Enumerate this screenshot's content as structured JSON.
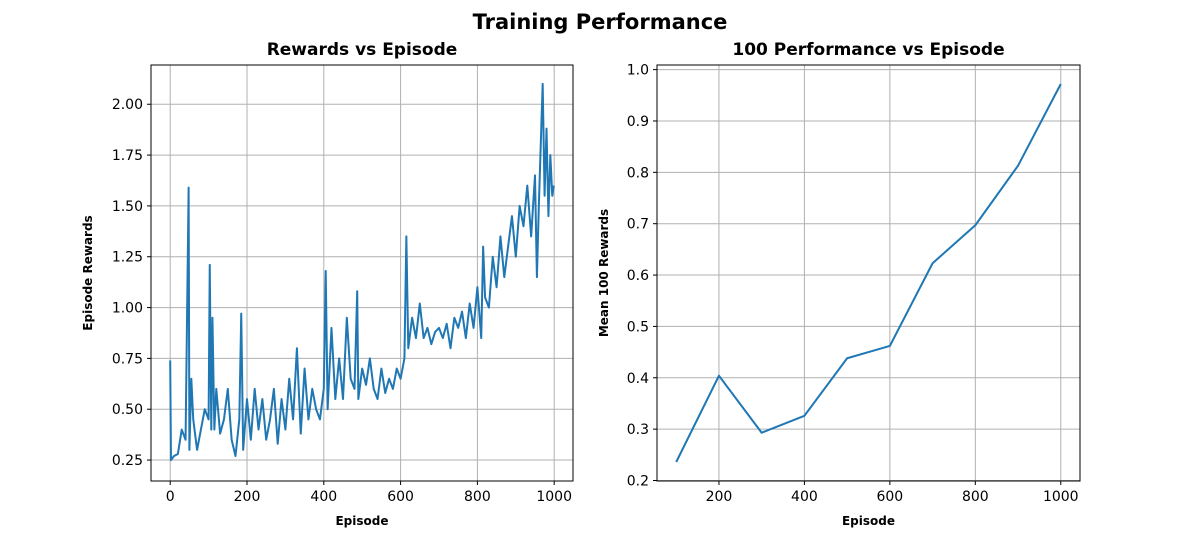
{
  "title": "Training Performance",
  "chart_data": [
    {
      "type": "line",
      "title": "Rewards vs Episode",
      "xlabel": "Episode",
      "ylabel": "Episode Rewards",
      "x": [
        0,
        2,
        10,
        20,
        30,
        40,
        48,
        50,
        55,
        60,
        70,
        80,
        90,
        100,
        103,
        107,
        110,
        115,
        120,
        130,
        140,
        150,
        160,
        170,
        180,
        185,
        190,
        200,
        210,
        220,
        230,
        240,
        250,
        260,
        270,
        280,
        290,
        300,
        310,
        320,
        330,
        340,
        350,
        360,
        370,
        380,
        390,
        400,
        405,
        410,
        420,
        430,
        440,
        450,
        460,
        470,
        480,
        487,
        490,
        500,
        510,
        520,
        530,
        540,
        550,
        560,
        570,
        580,
        590,
        600,
        610,
        615,
        620,
        630,
        640,
        650,
        660,
        670,
        680,
        690,
        700,
        710,
        720,
        730,
        740,
        750,
        760,
        770,
        780,
        790,
        800,
        810,
        815,
        820,
        830,
        840,
        850,
        860,
        870,
        880,
        890,
        900,
        910,
        920,
        930,
        940,
        950,
        955,
        960,
        965,
        970,
        975,
        980,
        985,
        990,
        995,
        999
      ],
      "series": [
        {
          "name": "Episode Rewards",
          "color": "#1f77b4",
          "values": [
            0.74,
            0.25,
            0.27,
            0.28,
            0.4,
            0.35,
            1.59,
            0.3,
            0.65,
            0.45,
            0.3,
            0.4,
            0.5,
            0.45,
            1.21,
            0.4,
            0.95,
            0.4,
            0.6,
            0.38,
            0.45,
            0.6,
            0.35,
            0.27,
            0.45,
            0.97,
            0.3,
            0.55,
            0.35,
            0.6,
            0.4,
            0.55,
            0.35,
            0.45,
            0.6,
            0.33,
            0.55,
            0.4,
            0.65,
            0.45,
            0.8,
            0.38,
            0.7,
            0.45,
            0.6,
            0.5,
            0.45,
            0.6,
            1.18,
            0.5,
            0.9,
            0.55,
            0.75,
            0.55,
            0.95,
            0.65,
            0.6,
            1.08,
            0.55,
            0.7,
            0.62,
            0.75,
            0.6,
            0.55,
            0.7,
            0.58,
            0.65,
            0.6,
            0.7,
            0.65,
            0.75,
            1.35,
            0.8,
            0.95,
            0.85,
            1.02,
            0.85,
            0.9,
            0.82,
            0.88,
            0.9,
            0.85,
            0.92,
            0.8,
            0.95,
            0.9,
            0.98,
            0.85,
            1.02,
            0.9,
            1.1,
            0.85,
            1.3,
            1.05,
            1.0,
            1.25,
            1.1,
            1.35,
            1.15,
            1.3,
            1.45,
            1.25,
            1.5,
            1.4,
            1.6,
            1.35,
            1.65,
            1.15,
            1.5,
            1.8,
            2.1,
            1.55,
            1.88,
            1.45,
            1.75,
            1.55,
            1.6
          ]
        }
      ],
      "xlim": [
        -50,
        1049
      ],
      "xticks": [
        0,
        200,
        400,
        600,
        800,
        1000
      ],
      "ylim": [
        0.147,
        2.193
      ],
      "yticks": [
        0.25,
        {
          "value": 0.5,
          "label": "0.50"
        },
        0.75,
        {
          "value": 1,
          "label": "1.00"
        },
        1.25,
        {
          "value": 1.5,
          "label": "1.50"
        },
        1.75,
        {
          "value": 2,
          "label": "2.00"
        }
      ],
      "grid": true
    },
    {
      "type": "line",
      "title": "100 Performance vs Episode",
      "xlabel": "Episode",
      "ylabel": "Mean 100 Rewards",
      "x": [
        100,
        200,
        300,
        400,
        500,
        600,
        700,
        800,
        900,
        1000
      ],
      "series": [
        {
          "name": "Mean 100 Rewards",
          "color": "#1f77b4",
          "values": [
            0.236,
            0.404,
            0.293,
            0.326,
            0.438,
            0.462,
            0.623,
            0.697,
            0.813,
            0.972
          ]
        }
      ],
      "xlim": [
        55,
        1045
      ],
      "xticks": [
        200,
        400,
        600,
        800,
        1000
      ],
      "ylim": [
        0.199,
        1.009
      ],
      "yticks": [
        0.2,
        0.3,
        0.4,
        0.5,
        0.6,
        0.7,
        0.8,
        0.9,
        {
          "value": 1,
          "label": "1.0"
        }
      ],
      "grid": true
    }
  ]
}
